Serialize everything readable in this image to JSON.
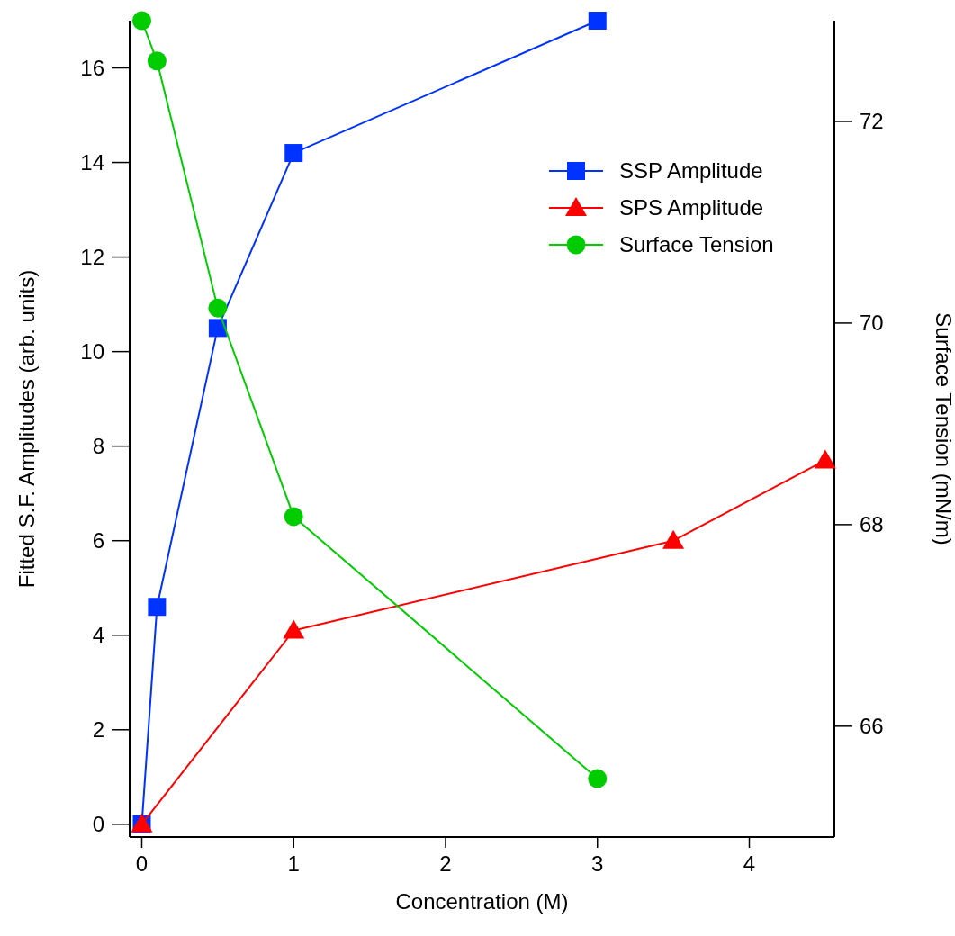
{
  "chart_data": {
    "type": "line",
    "xlabel": "Concentration (M)",
    "ylabel": "Fitted S.F. Amplitudes (arb. units)",
    "y2label": "Surface Tension (mN/m)",
    "xlim": [
      -0.08,
      4.56
    ],
    "xticks": [
      0,
      1,
      2,
      3,
      4
    ],
    "ylim": [
      -0.27,
      17
    ],
    "yticks": [
      0,
      2,
      4,
      6,
      8,
      10,
      12,
      14,
      16
    ],
    "y2lim": [
      64.9,
      73
    ],
    "y2ticks": [
      66,
      68,
      70,
      72
    ],
    "grid": false,
    "legend": "top right",
    "series": [
      {
        "name": "SSP Amplitude",
        "color": "#0033ff",
        "marker": "square",
        "x": [
          0,
          0.1,
          0.5,
          1,
          3
        ],
        "values": [
          0,
          4.6,
          10.5,
          14.2,
          17.0
        ]
      },
      {
        "name": "SPS Amplitude",
        "color": "#ff0000",
        "marker": "triangle",
        "x": [
          0,
          1,
          3.5,
          4.5
        ],
        "values": [
          0,
          4.1,
          6.0,
          7.7
        ]
      },
      {
        "name": "Surface Tension",
        "color": "#00cc00",
        "marker": "circle",
        "axis": "y2",
        "x": [
          0,
          0.1,
          0.5,
          1,
          3
        ],
        "values": [
          73.0,
          72.6,
          70.15,
          68.08,
          65.48
        ]
      }
    ]
  }
}
